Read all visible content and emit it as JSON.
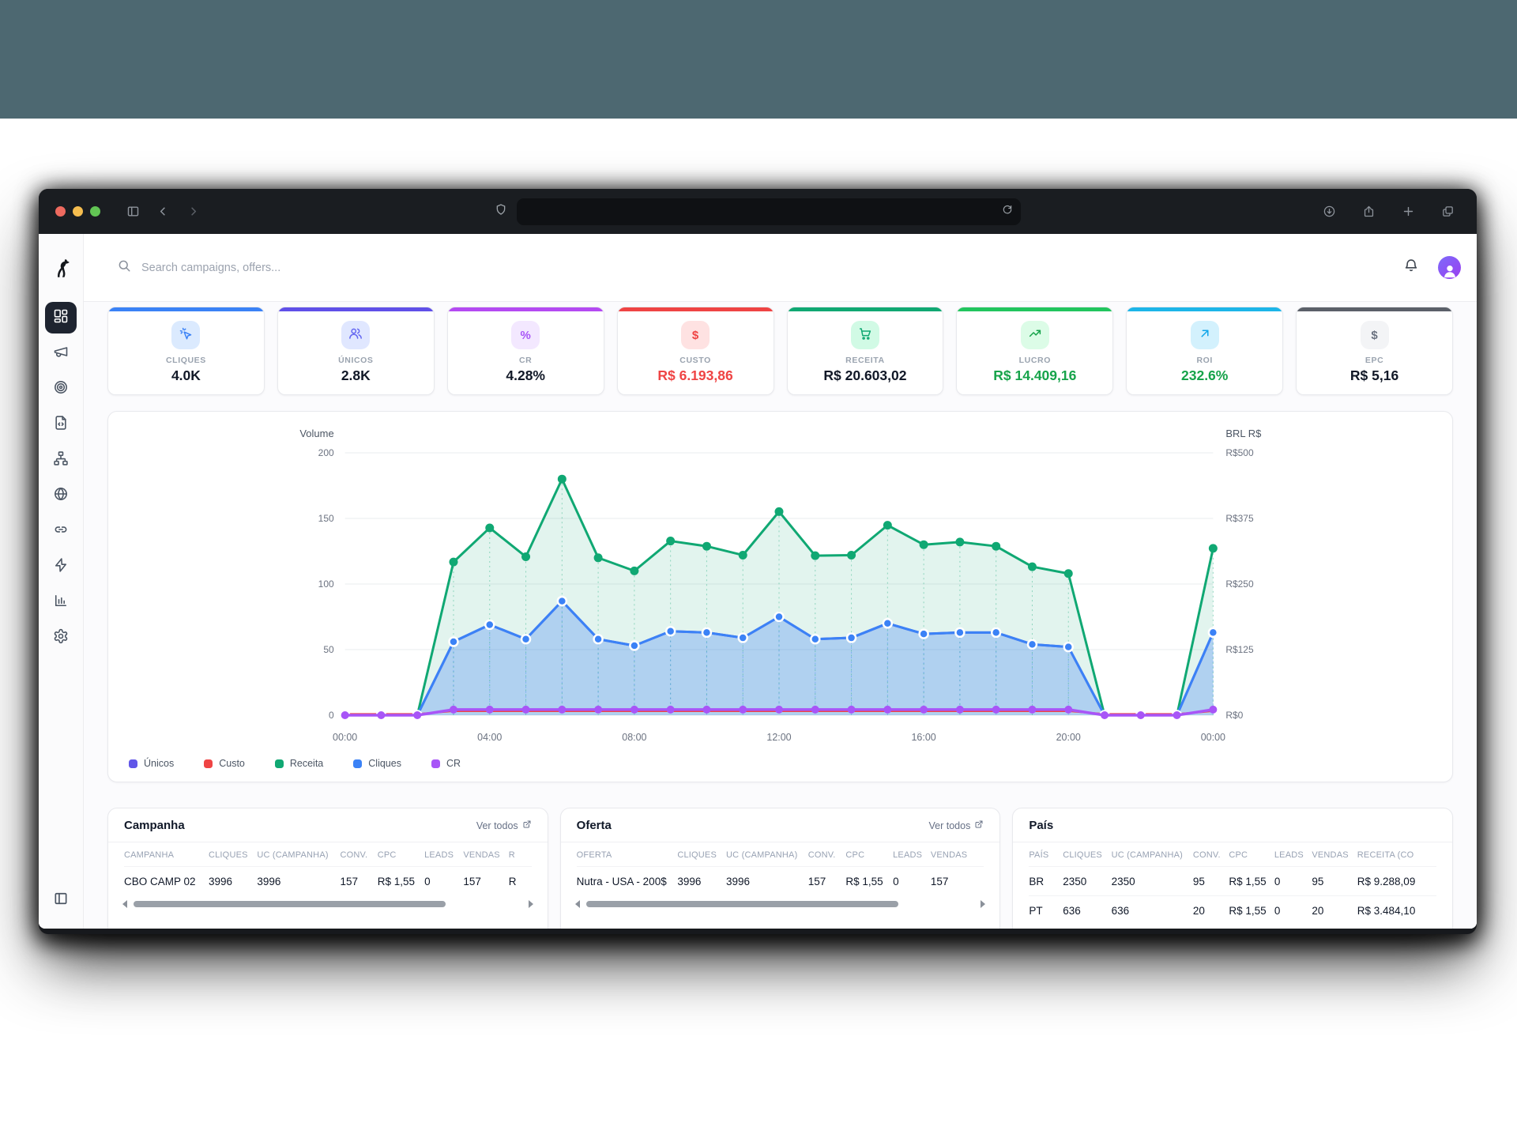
{
  "browser": {
    "search_placeholder": "Search campaigns, offers..."
  },
  "sidebar": {
    "items": [
      {
        "id": "dashboard",
        "icon": "dashboard",
        "active": true
      },
      {
        "id": "campaigns",
        "icon": "megaphone",
        "active": false
      },
      {
        "id": "offers",
        "icon": "target",
        "active": false
      },
      {
        "id": "landers",
        "icon": "file-code",
        "active": false
      },
      {
        "id": "flows",
        "icon": "network",
        "active": false
      },
      {
        "id": "domains",
        "icon": "globe",
        "active": false
      },
      {
        "id": "links",
        "icon": "link",
        "active": false
      },
      {
        "id": "automation",
        "icon": "zap",
        "active": false
      },
      {
        "id": "reports",
        "icon": "bar-chart",
        "active": false
      },
      {
        "id": "settings",
        "icon": "gear",
        "active": false
      }
    ]
  },
  "metrics": [
    {
      "label": "CLIQUES",
      "value": "4.0K",
      "accent": "#3b82f6",
      "icon": "click",
      "icon_color": "#3b82f6",
      "icon_bg": "#dbeafe",
      "value_color": "#111827"
    },
    {
      "label": "ÚNICOS",
      "value": "2.8K",
      "accent": "#6050e8",
      "icon": "users",
      "icon_color": "#6366f1",
      "icon_bg": "#e0e7ff",
      "value_color": "#111827"
    },
    {
      "label": "CR",
      "value": "4.28%",
      "accent": "#b44af2",
      "icon": "percent",
      "icon_color": "#a855f7",
      "icon_bg": "#f3e8ff",
      "value_color": "#111827"
    },
    {
      "label": "CUSTO",
      "value": "R$ 6.193,86",
      "accent": "#ef4444",
      "icon": "dollar",
      "icon_color": "#ef4444",
      "icon_bg": "#fee2e2",
      "value_color": "#ef4444"
    },
    {
      "label": "RECEITA",
      "value": "R$ 20.603,02",
      "accent": "#10a873",
      "icon": "cart",
      "icon_color": "#10a873",
      "icon_bg": "#d1fae5",
      "value_color": "#111827"
    },
    {
      "label": "LUCRO",
      "value": "R$ 14.409,16",
      "accent": "#22c55e",
      "icon": "trend-up",
      "icon_color": "#16a34a",
      "icon_bg": "#dcfce7",
      "value_color": "#16a34a"
    },
    {
      "label": "ROI",
      "value": "232.6%",
      "accent": "#1db5e8",
      "icon": "arrow-up-right",
      "icon_color": "#0ea5e9",
      "icon_bg": "#d3f1fd",
      "value_color": "#16a34a"
    },
    {
      "label": "EPC",
      "value": "R$ 5,16",
      "accent": "#5b6069",
      "icon": "dollar",
      "icon_color": "#6b7280",
      "icon_bg": "#f3f4f6",
      "value_color": "#111827"
    }
  ],
  "chart_data": {
    "type": "line",
    "x_tick_labels": [
      "00:00",
      "04:00",
      "08:00",
      "12:00",
      "16:00",
      "20:00",
      "00:00"
    ],
    "points_interval": "1h",
    "left_axis": {
      "title": "Volume",
      "max": 200,
      "ticks": [
        200,
        150,
        100,
        50,
        0
      ]
    },
    "right_axis": {
      "title": "BRL R$",
      "max": 500,
      "ticks": [
        "R$500",
        "R$375",
        "R$250",
        "R$125",
        "R$0"
      ]
    },
    "series": [
      {
        "name": "Únicos",
        "color": "#6156e8",
        "axis": "left",
        "values": [
          0,
          0,
          0,
          56,
          69,
          58,
          87,
          58,
          53,
          64,
          63,
          59,
          75,
          58,
          59,
          70,
          62,
          63,
          63,
          54,
          52,
          0,
          0,
          0,
          63
        ]
      },
      {
        "name": "Custo",
        "color": "#ef4444",
        "axis": "right",
        "values": [
          2,
          2,
          2,
          8,
          8,
          8,
          8,
          8,
          8,
          8,
          8,
          8,
          8,
          8,
          8,
          8,
          8,
          8,
          8,
          8,
          8,
          2,
          2,
          2,
          8
        ]
      },
      {
        "name": "Receita",
        "color": "#10a873",
        "axis": "right",
        "area": "rgba(16,168,115,0.12)",
        "values": [
          0,
          0,
          0,
          292,
          357,
          302,
          450,
          300,
          275,
          332,
          322,
          305,
          388,
          304,
          305,
          362,
          325,
          330,
          322,
          283,
          270,
          0,
          0,
          0,
          318
        ]
      },
      {
        "name": "Cliques",
        "color": "#3b82f6",
        "axis": "left",
        "area": "rgba(59,130,246,0.30)",
        "values": [
          0,
          0,
          0,
          56,
          69,
          58,
          87,
          58,
          53,
          64,
          63,
          59,
          75,
          58,
          59,
          70,
          62,
          63,
          63,
          54,
          52,
          0,
          0,
          0,
          63
        ]
      },
      {
        "name": "CR",
        "color": "#a855f7",
        "axis": "left",
        "values": [
          0,
          0,
          0,
          4.3,
          4.3,
          4.3,
          4.3,
          4.3,
          4.3,
          4.3,
          4.3,
          4.3,
          4.3,
          4.3,
          4.3,
          4.3,
          4.3,
          4.3,
          4.3,
          4.3,
          4.3,
          0,
          0,
          0,
          4.3
        ]
      }
    ]
  },
  "tables": [
    {
      "id": "campanha",
      "title": "Campanha",
      "link_label": "Ver todos",
      "columns": [
        "CAMPANHA",
        "CLIQUES",
        "UC (CAMPANHA)",
        "CONV.",
        "CPC",
        "LEADS",
        "VENDAS",
        "R"
      ],
      "rows": [
        [
          "CBO CAMP 02",
          "3996",
          "3996",
          "157",
          "R$ 1,55",
          "0",
          "157",
          "R"
        ]
      ],
      "scrollbar": true
    },
    {
      "id": "oferta",
      "title": "Oferta",
      "link_label": "Ver todos",
      "columns": [
        "OFERTA",
        "CLIQUES",
        "UC (CAMPANHA)",
        "CONV.",
        "CPC",
        "LEADS",
        "VENDAS"
      ],
      "rows": [
        [
          "Nutra - USA - 200$",
          "3996",
          "3996",
          "157",
          "R$ 1,55",
          "0",
          "157"
        ]
      ],
      "scrollbar": true
    },
    {
      "id": "pais",
      "title": "País",
      "link_label": null,
      "columns": [
        "PAÍS",
        "CLIQUES",
        "UC (CAMPANHA)",
        "CONV.",
        "CPC",
        "LEADS",
        "VENDAS",
        "RECEITA (CO"
      ],
      "rows": [
        [
          "BR",
          "2350",
          "2350",
          "95",
          "R$ 1,55",
          "0",
          "95",
          "R$ 9.288,09"
        ],
        [
          "PT",
          "636",
          "636",
          "20",
          "R$ 1,55",
          "0",
          "20",
          "R$ 3.484,10"
        ]
      ],
      "scrollbar": false
    }
  ]
}
